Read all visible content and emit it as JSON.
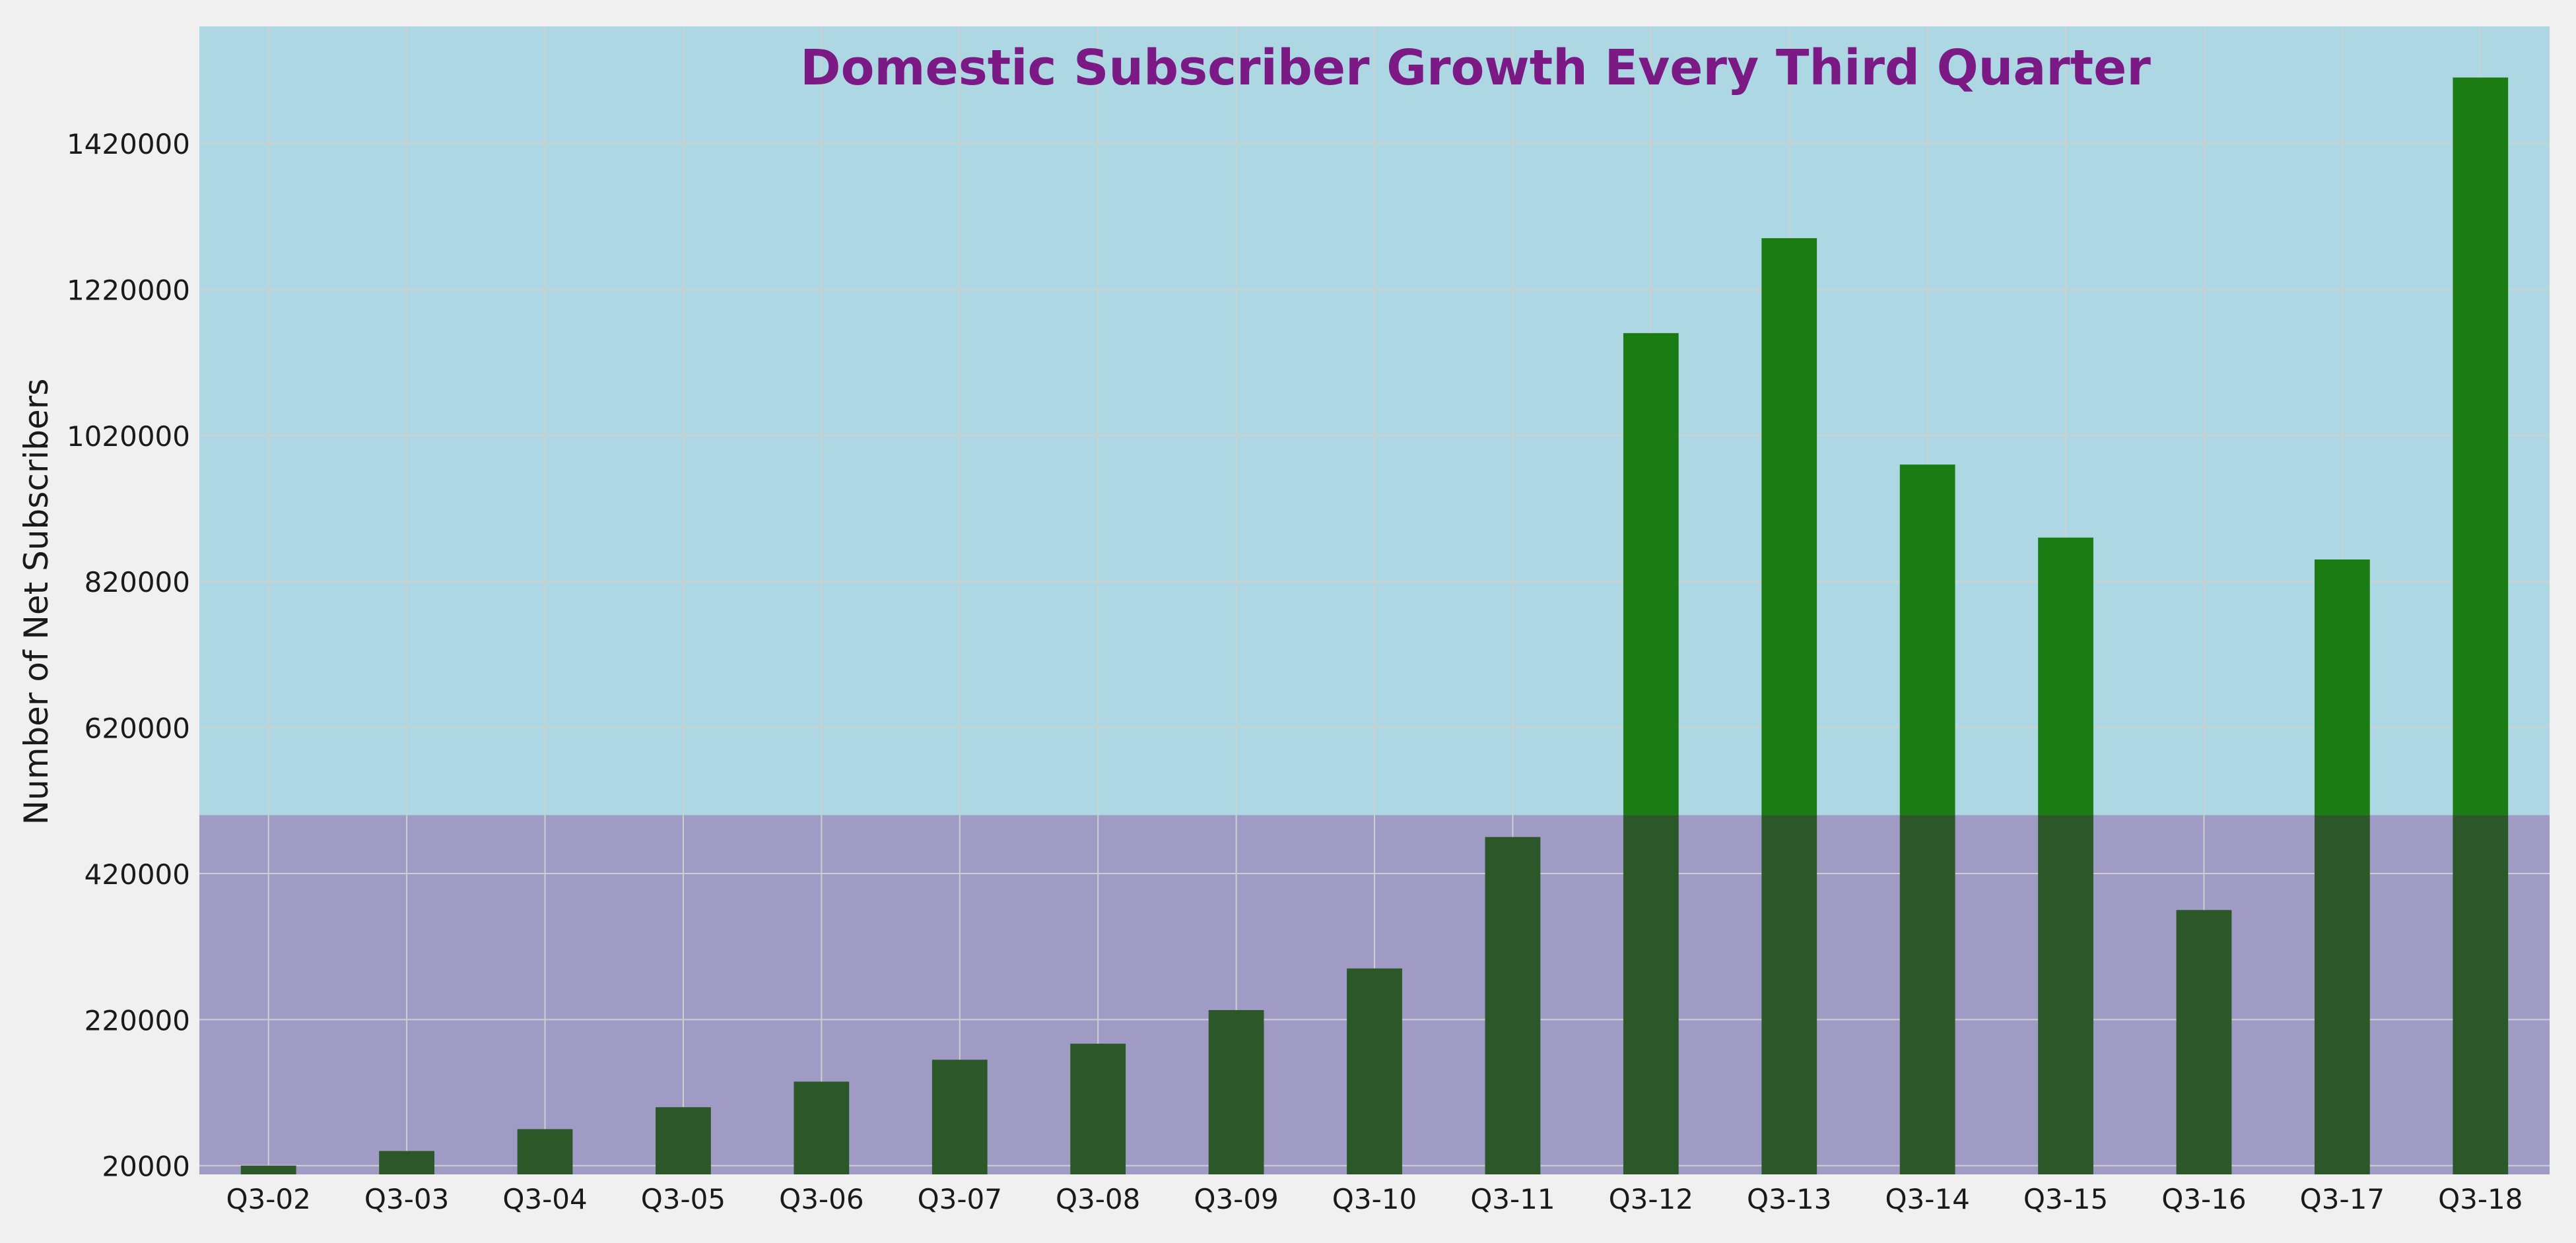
{
  "chart_data": {
    "type": "bar",
    "title": "Domestic Subscriber Growth Every Third Quarter",
    "xlabel": "",
    "ylabel": "Number of Net Subscribers",
    "categories": [
      "Q3-02",
      "Q3-03",
      "Q3-04",
      "Q3-05",
      "Q3-06",
      "Q3-07",
      "Q3-08",
      "Q3-09",
      "Q3-10",
      "Q3-11",
      "Q3-12",
      "Q3-13",
      "Q3-14",
      "Q3-15",
      "Q3-16",
      "Q3-17",
      "Q3-18"
    ],
    "values": [
      20000,
      40000,
      70000,
      100000,
      135000,
      165000,
      187000,
      233000,
      290000,
      470000,
      1160000,
      1290000,
      980000,
      880000,
      370000,
      850000,
      1510000
    ],
    "ylim": [
      8000,
      1580000
    ],
    "yticks": [
      20000,
      220000,
      420000,
      620000,
      820000,
      1020000,
      1220000,
      1420000
    ],
    "highlight_threshold": 500000,
    "grid": true,
    "colors": {
      "figure_bg": "#f0f0f0",
      "upper_band": "#add8e3",
      "lower_band": "#9f9bc5",
      "bar": "#1c7c14",
      "bar_below": "#2b5729",
      "title": "#7b1a84",
      "text": "#1a1a1a",
      "grid": "#cfcfcf"
    }
  }
}
